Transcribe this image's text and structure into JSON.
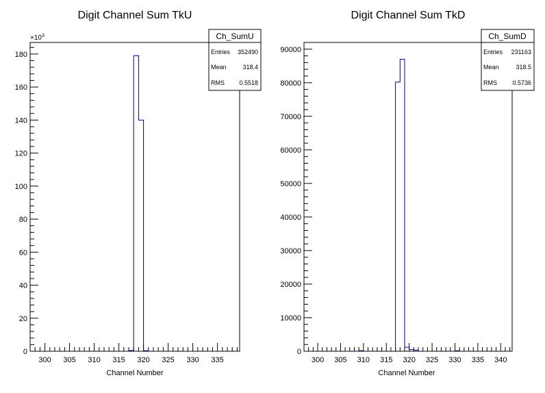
{
  "chart_data": [
    {
      "type": "histogram",
      "title": "Digit Channel Sum TkU",
      "xlabel": "Channel Number",
      "ylabel": "",
      "xlim": [
        297,
        339.5
      ],
      "ylim": [
        0,
        187
      ],
      "y_multiplier_label": "×10",
      "y_multiplier_exp": "3",
      "xticks": [
        "300",
        "305",
        "310",
        "315",
        "320",
        "325",
        "330",
        "335"
      ],
      "yticks": [
        "0",
        "20",
        "40",
        "60",
        "80",
        "100",
        "120",
        "140",
        "160",
        "180"
      ],
      "bins": [
        {
          "lo": 317,
          "hi": 318,
          "value": 0.4
        },
        {
          "lo": 318,
          "hi": 319,
          "value": 179
        },
        {
          "lo": 319,
          "hi": 320,
          "value": 140
        },
        {
          "lo": 320,
          "hi": 321,
          "value": 0.3
        }
      ],
      "stats": {
        "name": "Ch_SumU",
        "rows": [
          {
            "label": "Entries",
            "value": "352490"
          },
          {
            "label": "Mean",
            "value": "318.4"
          },
          {
            "label": "RMS",
            "value": "0.5518"
          }
        ]
      },
      "line_color": "#000080",
      "legend_position": "top-right"
    },
    {
      "type": "histogram",
      "title": "Digit Channel Sum TkD",
      "xlabel": "Channel Number",
      "ylabel": "",
      "xlim": [
        297,
        342.5
      ],
      "ylim": [
        0,
        92000
      ],
      "xticks": [
        "300",
        "305",
        "310",
        "315",
        "320",
        "325",
        "330",
        "335",
        "340"
      ],
      "yticks": [
        "0",
        "10000",
        "20000",
        "30000",
        "40000",
        "50000",
        "60000",
        "70000",
        "80000",
        "90000"
      ],
      "bins": [
        {
          "lo": 309,
          "hi": 310,
          "value": 150
        },
        {
          "lo": 317,
          "hi": 318,
          "value": 80200
        },
        {
          "lo": 318,
          "hi": 319,
          "value": 87000
        },
        {
          "lo": 319,
          "hi": 320,
          "value": 1200
        },
        {
          "lo": 320,
          "hi": 321,
          "value": 500
        },
        {
          "lo": 321,
          "hi": 322,
          "value": 300
        },
        {
          "lo": 330,
          "hi": 331,
          "value": 150
        }
      ],
      "stats": {
        "name": "Ch_SumD",
        "rows": [
          {
            "label": "Entries",
            "value": "231163"
          },
          {
            "label": "Mean",
            "value": "318.5"
          },
          {
            "label": "RMS",
            "value": "0.5736"
          }
        ]
      },
      "line_color": "#000080",
      "legend_position": "top-right"
    }
  ]
}
